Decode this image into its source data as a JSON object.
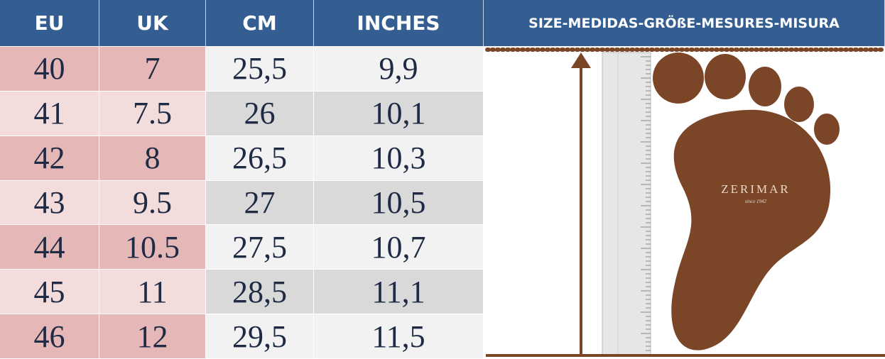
{
  "header": {
    "columns": [
      "EU",
      "UK",
      "CM",
      "INCHES"
    ],
    "panel_title": "SIZE-MEDIDAS-GRÖßE-MESURES-MISURA"
  },
  "table": {
    "rows": [
      [
        "40",
        "7",
        "25,5",
        "9,9"
      ],
      [
        "41",
        "7.5",
        "26",
        "10,1"
      ],
      [
        "42",
        "8",
        "26,5",
        "10,3"
      ],
      [
        "43",
        "9.5",
        "27",
        "10,5"
      ],
      [
        "44",
        "10.5",
        "27,5",
        "10,7"
      ],
      [
        "45",
        "11",
        "28,5",
        "11,1"
      ],
      [
        "46",
        "12",
        "29,5",
        "11,5"
      ]
    ]
  },
  "panel": {
    "brand": "ZERIMAR",
    "tagline": "since 1942"
  }
}
